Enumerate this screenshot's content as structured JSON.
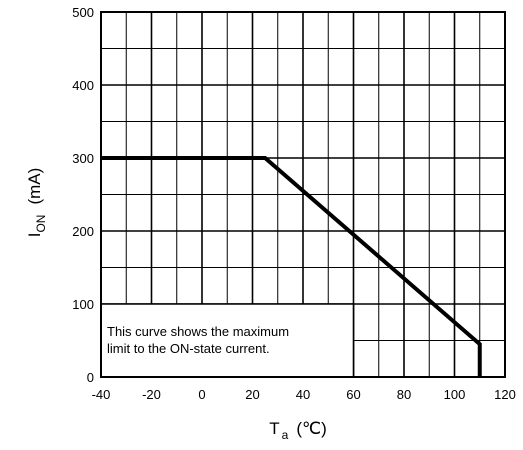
{
  "chart_data": {
    "type": "line",
    "title": "",
    "xlabel": {
      "main": "T",
      "sub": "a",
      "unit": "(℃)"
    },
    "ylabel": {
      "main": "I",
      "sub": "ON",
      "unit": "(mA)"
    },
    "xlim": [
      -40,
      120
    ],
    "ylim": [
      0,
      500
    ],
    "x_ticks": [
      -40,
      -20,
      0,
      20,
      40,
      60,
      80,
      100,
      120
    ],
    "y_ticks": [
      0,
      100,
      200,
      300,
      400,
      500
    ],
    "grid": true,
    "grid_minor": {
      "x_step": 10,
      "y_step": 50
    },
    "series": [
      {
        "x": [
          -40,
          25,
          110,
          110
        ],
        "y": [
          300,
          300,
          45,
          0
        ]
      }
    ],
    "annotation": {
      "lines": [
        "This curve shows the maximum",
        "limit to the ON-state current."
      ],
      "box": {
        "x_from": -40,
        "x_to": 60,
        "y_from": 0,
        "y_to": 100
      }
    },
    "colors": {
      "line": "#000000",
      "grid": "#000000",
      "background": "#ffffff"
    }
  }
}
